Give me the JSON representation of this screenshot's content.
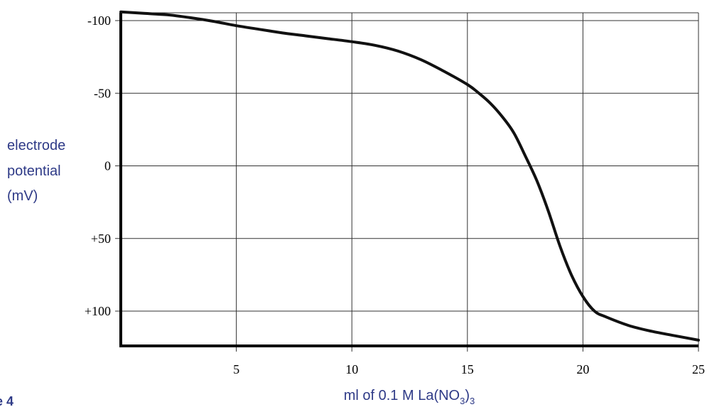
{
  "chart_data": {
    "type": "line",
    "xlabel_main": "ml of 0.1 M La(NO",
    "xlabel_sub1": "3",
    "xlabel_close": ")",
    "xlabel_sub2": "3",
    "ylabel_lines": [
      "electrode",
      "potential",
      "(mV)"
    ],
    "figure_label": "e 4",
    "xlim": [
      0,
      25
    ],
    "ylim": [
      -110,
      100
    ],
    "y_inverted": true,
    "grid": true,
    "x_ticks": [
      {
        "value": 5,
        "label": "5"
      },
      {
        "value": 10,
        "label": "10"
      },
      {
        "value": 15,
        "label": "15"
      },
      {
        "value": 20,
        "label": "20"
      },
      {
        "value": 25,
        "label": "25"
      }
    ],
    "y_ticks": [
      {
        "value": -100,
        "label": "-100"
      },
      {
        "value": -50,
        "label": "-50"
      },
      {
        "value": 0,
        "label": "0"
      },
      {
        "value": 50,
        "label": "+50"
      },
      {
        "value": 100,
        "label": "+100"
      }
    ],
    "series": [
      {
        "x": [
          0,
          1,
          2,
          3,
          4,
          5,
          6,
          7,
          8,
          9,
          10,
          11,
          12,
          13,
          14,
          15,
          15.5,
          16,
          16.5,
          17,
          17.5,
          18,
          18.5,
          19,
          19.5,
          20,
          20.5,
          21,
          22,
          23,
          24,
          25
        ],
        "y": [
          -106,
          -105,
          -104,
          -102,
          -99.5,
          -96.5,
          -94,
          -91.5,
          -89.5,
          -87.5,
          -85.5,
          -83,
          -79,
          -73,
          -65,
          -56,
          -50,
          -43,
          -34,
          -23,
          -7,
          10,
          31,
          55,
          75,
          90,
          100,
          104,
          110,
          114,
          117,
          120
        ]
      }
    ],
    "colors": {
      "line": "#111111",
      "grid": "#333333",
      "label": "#2e3a87"
    }
  }
}
